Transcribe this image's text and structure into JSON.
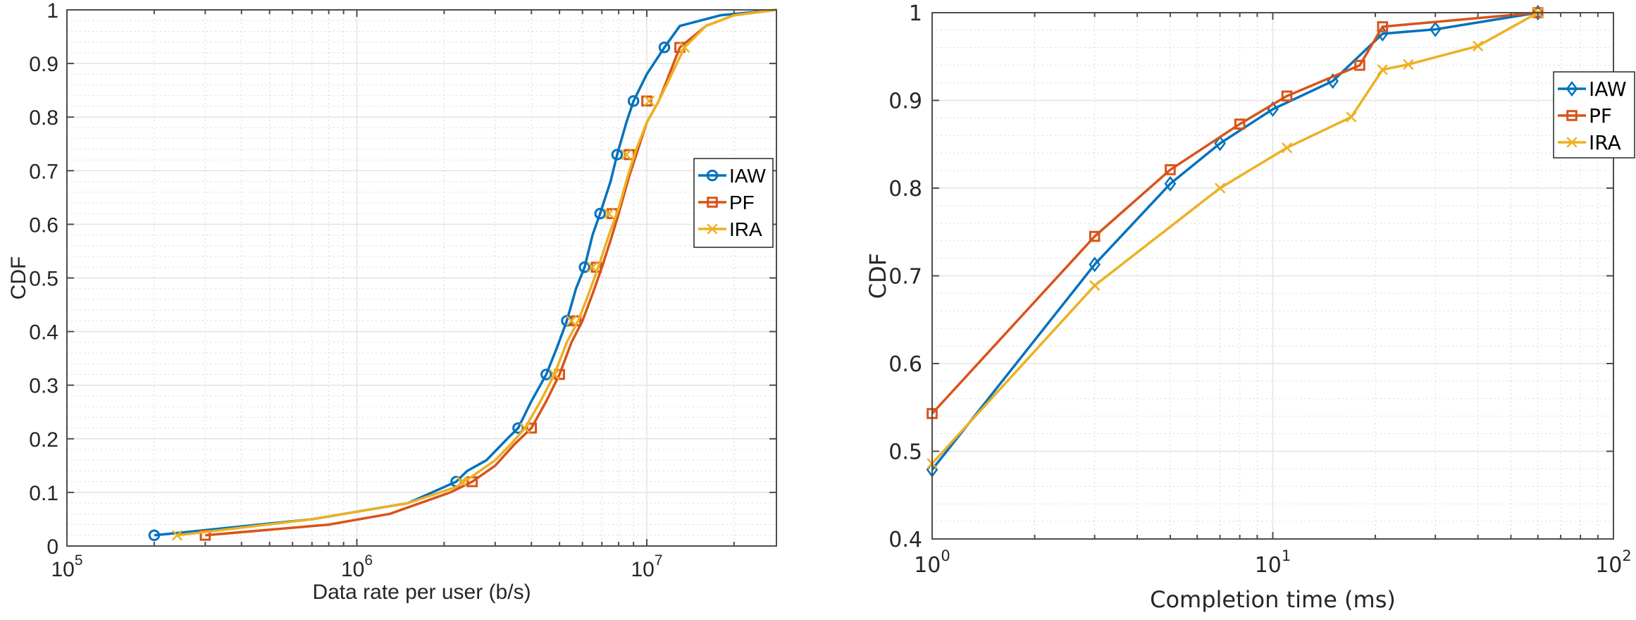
{
  "chart_data": [
    {
      "type": "line",
      "title": "",
      "xlabel": "Data rate per user (b/s)",
      "ylabel": "CDF",
      "xscale": "log",
      "xlim": [
        100000,
        28000000
      ],
      "ylim": [
        0,
        1
      ],
      "grid": true,
      "minor_grid": true,
      "legend_position": "right",
      "x_ticks": [
        {
          "value": 100000,
          "base": "10",
          "exp": "5"
        },
        {
          "value": 1000000,
          "base": "10",
          "exp": "6"
        },
        {
          "value": 10000000,
          "base": "10",
          "exp": "7"
        }
      ],
      "y_ticks": [
        "0",
        "0.1",
        "0.2",
        "0.3",
        "0.4",
        "0.5",
        "0.6",
        "0.7",
        "0.8",
        "0.9",
        "1"
      ],
      "series": [
        {
          "name": "IAW",
          "color": "#0072BD",
          "marker": "circle",
          "x": [
            200000,
            700000,
            1500000,
            2200000,
            2400000,
            2800000,
            3300000,
            3600000,
            4000000,
            4500000,
            4900000,
            5300000,
            5700000,
            6100000,
            6500000,
            6900000,
            7500000,
            7900000,
            8500000,
            9000000,
            10000000,
            11500000,
            13000000,
            18000000,
            28000000
          ],
          "y": [
            0.02,
            0.05,
            0.08,
            0.12,
            0.14,
            0.16,
            0.2,
            0.22,
            0.27,
            0.32,
            0.37,
            0.42,
            0.48,
            0.52,
            0.58,
            0.62,
            0.68,
            0.73,
            0.79,
            0.83,
            0.88,
            0.93,
            0.97,
            0.99,
            1.0
          ],
          "marker_x": [
            200000,
            2200000,
            3600000,
            4500000,
            5300000,
            6100000,
            6900000,
            7900000,
            9000000,
            11500000
          ],
          "marker_y": [
            0.02,
            0.12,
            0.22,
            0.32,
            0.42,
            0.52,
            0.62,
            0.73,
            0.83,
            0.93
          ]
        },
        {
          "name": "PF",
          "color": "#D95319",
          "marker": "square",
          "x": [
            300000,
            800000,
            1300000,
            2100000,
            2500000,
            3000000,
            3500000,
            4000000,
            4500000,
            5000000,
            5500000,
            6000000,
            6500000,
            7000000,
            7500000,
            8000000,
            8700000,
            9200000,
            10000000,
            11000000,
            13000000,
            16000000,
            20000000,
            28000000
          ],
          "y": [
            0.02,
            0.04,
            0.06,
            0.1,
            0.12,
            0.15,
            0.19,
            0.22,
            0.27,
            0.32,
            0.38,
            0.42,
            0.47,
            0.52,
            0.57,
            0.62,
            0.69,
            0.73,
            0.79,
            0.83,
            0.93,
            0.97,
            0.99,
            1.0
          ],
          "marker_x": [
            300000,
            2500000,
            4000000,
            5000000,
            5700000,
            6700000,
            7600000,
            8700000,
            10000000,
            13000000
          ],
          "marker_y": [
            0.02,
            0.12,
            0.22,
            0.32,
            0.42,
            0.52,
            0.62,
            0.73,
            0.83,
            0.93
          ]
        },
        {
          "name": "IRA",
          "color": "#EDB120",
          "marker": "x",
          "x": [
            240000,
            700000,
            1500000,
            2200000,
            2500000,
            3000000,
            3400000,
            3800000,
            4300000,
            4800000,
            5300000,
            5800000,
            6300000,
            6800000,
            7400000,
            8000000,
            8600000,
            9200000,
            10000000,
            11000000,
            13500000,
            16000000,
            20000000,
            28000000
          ],
          "y": [
            0.02,
            0.05,
            0.08,
            0.11,
            0.13,
            0.16,
            0.19,
            0.22,
            0.27,
            0.32,
            0.38,
            0.42,
            0.47,
            0.52,
            0.58,
            0.63,
            0.69,
            0.74,
            0.79,
            0.83,
            0.93,
            0.97,
            0.99,
            1.0
          ],
          "marker_x": [
            240000,
            2300000,
            3800000,
            4800000,
            5500000,
            6500000,
            7400000,
            8500000,
            10200000,
            13500000
          ],
          "marker_y": [
            0.02,
            0.12,
            0.22,
            0.32,
            0.42,
            0.52,
            0.62,
            0.73,
            0.83,
            0.93
          ]
        }
      ]
    },
    {
      "type": "line",
      "title": "",
      "xlabel": "Completion time (ms)",
      "ylabel": "CDF",
      "xscale": "log",
      "xlim": [
        1,
        100
      ],
      "ylim": [
        0.4,
        1
      ],
      "grid": true,
      "minor_grid": true,
      "legend_position": "right",
      "x_ticks": [
        {
          "value": 1,
          "base": "10",
          "exp": "0"
        },
        {
          "value": 10,
          "base": "10",
          "exp": "1"
        },
        {
          "value": 100,
          "base": "10",
          "exp": "2"
        }
      ],
      "y_ticks": [
        "0.4",
        "0.5",
        "0.6",
        "0.7",
        "0.8",
        "0.9",
        "1"
      ],
      "series": [
        {
          "name": "IAW",
          "color": "#0072BD",
          "marker": "diamond",
          "x": [
            1,
            3,
            5,
            7,
            10,
            15,
            21,
            30,
            60
          ],
          "y": [
            0.479,
            0.713,
            0.805,
            0.851,
            0.89,
            0.922,
            0.976,
            0.981,
            1.0
          ]
        },
        {
          "name": "PF",
          "color": "#D95319",
          "marker": "square",
          "x": [
            1,
            3,
            5,
            8,
            11,
            18,
            21,
            60
          ],
          "y": [
            0.543,
            0.745,
            0.821,
            0.873,
            0.905,
            0.94,
            0.984,
            1.0
          ]
        },
        {
          "name": "IRA",
          "color": "#EDB120",
          "marker": "x",
          "x": [
            1,
            3,
            7,
            11,
            17,
            21,
            25,
            40,
            60
          ],
          "y": [
            0.486,
            0.689,
            0.8,
            0.846,
            0.881,
            0.935,
            0.941,
            0.962,
            1.0
          ]
        }
      ]
    }
  ]
}
